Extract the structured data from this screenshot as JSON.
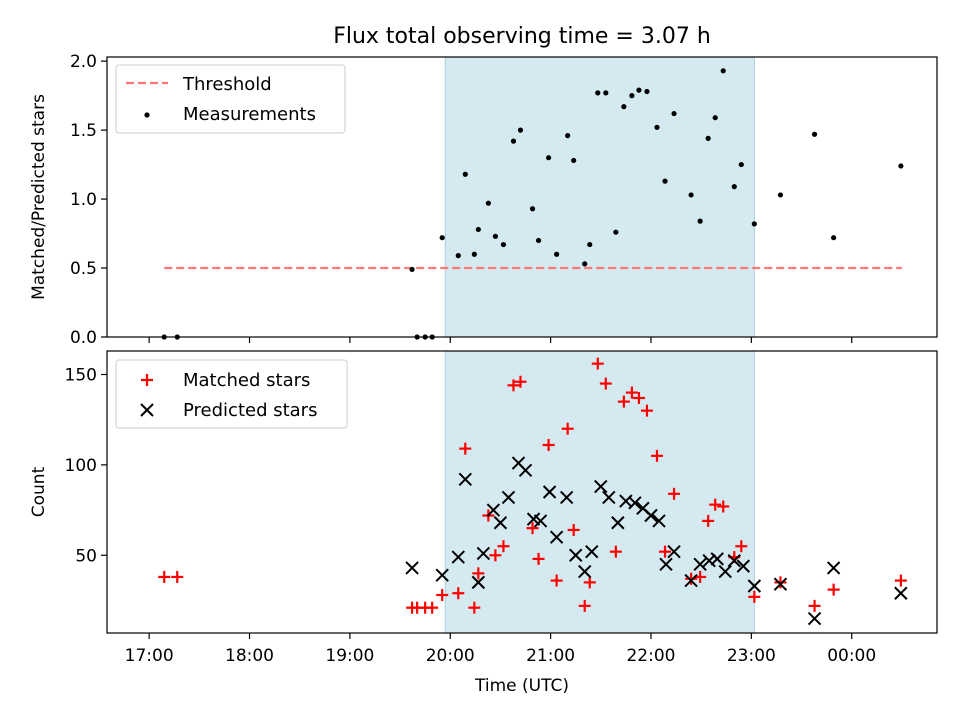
{
  "figure_title": "Flux total observing time = 3.07 h",
  "colors": {
    "shade": "#d4eaf0",
    "threshold": "#ff7777",
    "measurement": "#000000",
    "matched": "#ff0000",
    "predicted": "#000000"
  },
  "chart_data": [
    {
      "type": "scatter",
      "ylabel": "Matched/Predicted stars",
      "xlabel": "",
      "x_unit": "hours since 17:00 UTC",
      "xlim": [
        16.58,
        24.85
      ],
      "ylim": [
        0.0,
        2.03
      ],
      "yticks": [
        0.0,
        0.5,
        1.0,
        1.5,
        2.0
      ],
      "ytick_labels": [
        "0.0",
        "0.5",
        "1.0",
        "1.5",
        "2.0"
      ],
      "xticks": [
        17,
        18,
        19,
        20,
        21,
        22,
        23,
        24
      ],
      "shaded_span": [
        19.95,
        23.03
      ],
      "legend_position": "upper-left",
      "legend": {
        "threshold": "Threshold",
        "measurements": "Measurements"
      },
      "threshold": {
        "name": "Threshold",
        "value": 0.5,
        "x": [
          17.15,
          24.5
        ]
      },
      "series": [
        {
          "name": "Measurements",
          "x": [
            17.15,
            17.28,
            19.62,
            19.67,
            19.75,
            19.82,
            19.92,
            20.08,
            20.15,
            20.24,
            20.28,
            20.38,
            20.45,
            20.53,
            20.63,
            20.7,
            20.82,
            20.88,
            20.98,
            21.06,
            21.17,
            21.23,
            21.34,
            21.39,
            21.47,
            21.55,
            21.65,
            21.73,
            21.81,
            21.88,
            21.96,
            22.06,
            22.14,
            22.23,
            22.4,
            22.49,
            22.57,
            22.64,
            22.72,
            22.83,
            22.9,
            23.03,
            23.29,
            23.63,
            23.82,
            24.49
          ],
          "y": [
            0.0,
            0.0,
            0.49,
            0.0,
            0.0,
            0.0,
            0.72,
            0.59,
            1.18,
            0.6,
            0.78,
            0.97,
            0.73,
            0.67,
            1.42,
            1.5,
            0.93,
            0.7,
            1.3,
            0.6,
            1.46,
            1.28,
            0.53,
            0.67,
            1.77,
            1.77,
            0.76,
            1.67,
            1.75,
            1.79,
            1.78,
            1.52,
            1.13,
            1.62,
            1.03,
            0.84,
            1.44,
            1.59,
            1.93,
            1.09,
            1.25,
            0.82,
            1.03,
            1.47,
            0.72,
            1.24
          ]
        }
      ]
    },
    {
      "type": "scatter",
      "ylabel": "Count",
      "xlabel": "Time (UTC)",
      "x_unit": "hours since 17:00 UTC",
      "xlim": [
        16.58,
        24.85
      ],
      "ylim": [
        7,
        163
      ],
      "yticks": [
        50,
        100,
        150
      ],
      "ytick_labels": [
        "50",
        "100",
        "150"
      ],
      "xticks": [
        17,
        18,
        19,
        20,
        21,
        22,
        23,
        24
      ],
      "xtick_labels": [
        "17:00",
        "18:00",
        "19:00",
        "20:00",
        "21:00",
        "22:00",
        "23:00",
        "00:00"
      ],
      "shaded_span": [
        19.95,
        23.03
      ],
      "legend_position": "upper-left",
      "legend": {
        "matched": "Matched stars",
        "predicted": "Predicted stars"
      },
      "series": [
        {
          "name": "Matched stars",
          "marker": "plus",
          "x": [
            17.15,
            17.28,
            19.62,
            19.67,
            19.75,
            19.82,
            19.92,
            20.08,
            20.15,
            20.24,
            20.28,
            20.38,
            20.45,
            20.53,
            20.63,
            20.7,
            20.82,
            20.88,
            20.98,
            21.06,
            21.17,
            21.23,
            21.34,
            21.39,
            21.47,
            21.55,
            21.65,
            21.73,
            21.81,
            21.88,
            21.96,
            22.06,
            22.14,
            22.23,
            22.4,
            22.49,
            22.57,
            22.64,
            22.72,
            22.83,
            22.9,
            23.03,
            23.29,
            23.63,
            23.82,
            24.49
          ],
          "y": [
            38,
            38,
            21,
            21,
            21,
            21,
            28,
            29,
            109,
            21,
            40,
            72,
            50,
            55,
            144,
            146,
            65,
            48,
            111,
            36,
            120,
            64,
            22,
            35,
            156,
            145,
            52,
            135,
            140,
            137,
            130,
            105,
            52,
            84,
            37,
            38,
            69,
            78,
            77,
            49,
            55,
            27,
            35,
            22,
            31,
            36
          ]
        },
        {
          "name": "Predicted stars",
          "marker": "x",
          "x": [
            19.62,
            19.92,
            20.08,
            20.15,
            20.28,
            20.33,
            20.43,
            20.5,
            20.58,
            20.68,
            20.75,
            20.83,
            20.9,
            20.99,
            21.06,
            21.16,
            21.25,
            21.34,
            21.41,
            21.5,
            21.58,
            21.67,
            21.75,
            21.84,
            21.92,
            22.0,
            22.08,
            22.15,
            22.23,
            22.4,
            22.49,
            22.58,
            22.66,
            22.74,
            22.83,
            22.92,
            23.03,
            23.29,
            23.63,
            23.82,
            24.49
          ],
          "y": [
            43,
            39,
            49,
            92,
            35,
            51,
            75,
            68,
            82,
            101,
            97,
            70,
            69,
            85,
            60,
            82,
            50,
            41,
            52,
            88,
            82,
            68,
            80,
            79,
            76,
            72,
            69,
            45,
            52,
            36,
            45,
            47,
            48,
            41,
            47,
            44,
            33,
            34,
            15,
            43,
            29
          ]
        }
      ]
    }
  ]
}
